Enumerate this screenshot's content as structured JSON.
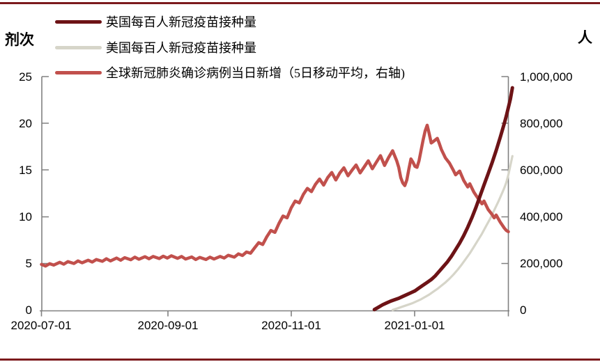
{
  "frame": {
    "top_rule_color": "#7c1a1d",
    "bottom_rule_color": "#7c1a1d"
  },
  "chart": {
    "left_axis_title": "剂次",
    "right_axis_title": "人",
    "left_ticks": [
      "25",
      "20",
      "15",
      "10",
      "5",
      "0"
    ],
    "right_ticks": [
      "1,000,000",
      "800,000",
      "600,000",
      "400,000",
      "200,000",
      "0"
    ],
    "x_ticks": [
      "2020-07-01",
      "2020-09-01",
      "2020-11-01",
      "2021-01-01"
    ],
    "axis_color": "#808080",
    "legend": [
      {
        "label": "英国每百人新冠疫苗接种量",
        "color": "#6d1316"
      },
      {
        "label": "美国每百人新冠疫苗接种量",
        "color": "#d6d5c9"
      },
      {
        "label": "全球新冠肺炎确诊病例当日新增（5日移动平均，右轴)",
        "color": "#c1504c"
      }
    ]
  },
  "chart_data": {
    "type": "line",
    "x_unit": "days since 2020-07-01",
    "x_tick_labels": [
      "2020-07-01",
      "2020-09-01",
      "2020-11-01",
      "2021-01-01"
    ],
    "x_tick_days": [
      0,
      62,
      123,
      184
    ],
    "x_range_days": [
      0,
      232
    ],
    "left_axis": {
      "label": "剂次",
      "range": [
        0,
        25
      ]
    },
    "right_axis": {
      "label": "人",
      "range": [
        0,
        1000000
      ]
    },
    "grid": false,
    "legend_position": "top-left",
    "series": [
      {
        "name": "英国每百人新冠疫苗接种量",
        "axis": "left",
        "color": "#6d1316",
        "points": [
          [
            164,
            0.1
          ],
          [
            166,
            0.35
          ],
          [
            168,
            0.6
          ],
          [
            170,
            0.8
          ],
          [
            172,
            1.0
          ],
          [
            174,
            1.15
          ],
          [
            176,
            1.3
          ],
          [
            178,
            1.5
          ],
          [
            180,
            1.7
          ],
          [
            182,
            1.9
          ],
          [
            184,
            2.1
          ],
          [
            186,
            2.4
          ],
          [
            188,
            2.7
          ],
          [
            190,
            3.0
          ],
          [
            192,
            3.3
          ],
          [
            194,
            3.7
          ],
          [
            196,
            4.2
          ],
          [
            198,
            4.7
          ],
          [
            200,
            5.2
          ],
          [
            202,
            5.8
          ],
          [
            204,
            6.5
          ],
          [
            206,
            7.2
          ],
          [
            208,
            8.0
          ],
          [
            210,
            8.9
          ],
          [
            212,
            9.9
          ],
          [
            214,
            11.0
          ],
          [
            216,
            12.2
          ],
          [
            218,
            13.4
          ],
          [
            220,
            14.6
          ],
          [
            222,
            15.8
          ],
          [
            224,
            17.1
          ],
          [
            226,
            18.5
          ],
          [
            228,
            20.0
          ],
          [
            229,
            20.8
          ],
          [
            230,
            21.7
          ],
          [
            231,
            22.6
          ],
          [
            232,
            23.8
          ]
        ]
      },
      {
        "name": "美国每百人新冠疫苗接种量",
        "axis": "left",
        "color": "#d6d5c9",
        "points": [
          [
            173,
            0.05
          ],
          [
            175,
            0.2
          ],
          [
            177,
            0.35
          ],
          [
            179,
            0.5
          ],
          [
            181,
            0.65
          ],
          [
            183,
            0.8
          ],
          [
            185,
            1.0
          ],
          [
            187,
            1.2
          ],
          [
            189,
            1.45
          ],
          [
            191,
            1.7
          ],
          [
            193,
            2.0
          ],
          [
            195,
            2.3
          ],
          [
            197,
            2.65
          ],
          [
            199,
            3.0
          ],
          [
            201,
            3.4
          ],
          [
            203,
            3.85
          ],
          [
            205,
            4.35
          ],
          [
            207,
            4.9
          ],
          [
            209,
            5.5
          ],
          [
            211,
            6.1
          ],
          [
            213,
            6.8
          ],
          [
            215,
            7.5
          ],
          [
            217,
            8.2
          ],
          [
            219,
            9.0
          ],
          [
            221,
            9.8
          ],
          [
            223,
            10.7
          ],
          [
            225,
            11.6
          ],
          [
            227,
            12.6
          ],
          [
            228,
            13.1
          ],
          [
            229,
            13.7
          ],
          [
            230,
            14.5
          ],
          [
            231,
            15.5
          ],
          [
            232,
            16.5
          ]
        ]
      },
      {
        "name": "全球新冠肺炎确诊病例当日新增（5日移动平均，右轴)",
        "axis": "right",
        "color": "#c1504c",
        "points": [
          [
            0,
            197000
          ],
          [
            2,
            190000
          ],
          [
            4,
            200000
          ],
          [
            6,
            194000
          ],
          [
            9,
            206000
          ],
          [
            11,
            198000
          ],
          [
            13,
            209000
          ],
          [
            16,
            201000
          ],
          [
            18,
            212000
          ],
          [
            20,
            204000
          ],
          [
            23,
            215000
          ],
          [
            25,
            207000
          ],
          [
            27,
            218000
          ],
          [
            30,
            210000
          ],
          [
            32,
            221000
          ],
          [
            34,
            212000
          ],
          [
            37,
            224000
          ],
          [
            39,
            215000
          ],
          [
            41,
            226000
          ],
          [
            44,
            217000
          ],
          [
            46,
            228000
          ],
          [
            48,
            219000
          ],
          [
            51,
            230000
          ],
          [
            53,
            221000
          ],
          [
            55,
            231000
          ],
          [
            58,
            222000
          ],
          [
            60,
            232000
          ],
          [
            62,
            224000
          ],
          [
            64,
            234000
          ],
          [
            67,
            223000
          ],
          [
            69,
            231000
          ],
          [
            71,
            220000
          ],
          [
            74,
            229000
          ],
          [
            76,
            218000
          ],
          [
            78,
            227000
          ],
          [
            81,
            218000
          ],
          [
            83,
            228000
          ],
          [
            85,
            220000
          ],
          [
            88,
            231000
          ],
          [
            90,
            224000
          ],
          [
            92,
            236000
          ],
          [
            95,
            228000
          ],
          [
            97,
            242000
          ],
          [
            99,
            235000
          ],
          [
            101,
            250000
          ],
          [
            103,
            245000
          ],
          [
            105,
            268000
          ],
          [
            107,
            290000
          ],
          [
            109,
            282000
          ],
          [
            111,
            315000
          ],
          [
            113,
            342000
          ],
          [
            115,
            334000
          ],
          [
            117,
            372000
          ],
          [
            119,
            404000
          ],
          [
            121,
            396000
          ],
          [
            123,
            438000
          ],
          [
            125,
            468000
          ],
          [
            127,
            460000
          ],
          [
            129,
            496000
          ],
          [
            131,
            522000
          ],
          [
            133,
            508000
          ],
          [
            135,
            540000
          ],
          [
            137,
            562000
          ],
          [
            139,
            536000
          ],
          [
            141,
            568000
          ],
          [
            143,
            590000
          ],
          [
            145,
            558000
          ],
          [
            147,
            588000
          ],
          [
            149,
            610000
          ],
          [
            151,
            576000
          ],
          [
            153,
            600000
          ],
          [
            155,
            622000
          ],
          [
            157,
            588000
          ],
          [
            159,
            614000
          ],
          [
            161,
            640000
          ],
          [
            163,
            606000
          ],
          [
            165,
            634000
          ],
          [
            167,
            662000
          ],
          [
            169,
            620000
          ],
          [
            171,
            654000
          ],
          [
            173,
            683000
          ],
          [
            175,
            640000
          ],
          [
            176,
            612000
          ],
          [
            177,
            568000
          ],
          [
            178,
            545000
          ],
          [
            179,
            534000
          ],
          [
            180,
            558000
          ],
          [
            181,
            606000
          ],
          [
            182,
            648000
          ],
          [
            183,
            634000
          ],
          [
            184,
            616000
          ],
          [
            185,
            612000
          ],
          [
            186,
            640000
          ],
          [
            187,
            684000
          ],
          [
            188,
            728000
          ],
          [
            189,
            768000
          ],
          [
            190,
            792000
          ],
          [
            191,
            756000
          ],
          [
            192,
            716000
          ],
          [
            193,
            722000
          ],
          [
            195,
            736000
          ],
          [
            196,
            714000
          ],
          [
            197,
            688000
          ],
          [
            199,
            652000
          ],
          [
            201,
            630000
          ],
          [
            203,
            598000
          ],
          [
            204,
            580000
          ],
          [
            206,
            596000
          ],
          [
            208,
            556000
          ],
          [
            210,
            528000
          ],
          [
            211,
            542000
          ],
          [
            213,
            506000
          ],
          [
            215,
            480000
          ],
          [
            217,
            456000
          ],
          [
            218,
            468000
          ],
          [
            220,
            432000
          ],
          [
            222,
            410000
          ],
          [
            223,
            396000
          ],
          [
            224,
            408000
          ],
          [
            226,
            378000
          ],
          [
            228,
            352000
          ],
          [
            229,
            342000
          ],
          [
            230,
            337000
          ]
        ]
      }
    ]
  }
}
